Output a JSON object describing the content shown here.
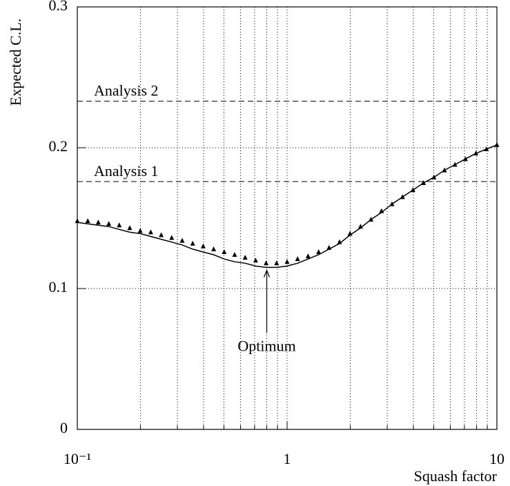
{
  "chart_data": {
    "type": "line",
    "xlabel": "Squash factor",
    "ylabel": "Expected C.L.",
    "xscale": "log",
    "x": [
      0.1,
      0.1122,
      0.1259,
      0.1413,
      0.1585,
      0.1778,
      0.1995,
      0.2239,
      0.2512,
      0.2818,
      0.3162,
      0.3548,
      0.3981,
      0.4467,
      0.5012,
      0.5623,
      0.631,
      0.7079,
      0.7943,
      0.8913,
      1,
      1.122,
      1.259,
      1.413,
      1.585,
      1.778,
      1.995,
      2.239,
      2.512,
      2.818,
      3.162,
      3.548,
      3.981,
      4.467,
      5.012,
      5.623,
      6.31,
      7.079,
      7.943,
      8.913,
      10
    ],
    "series": [
      {
        "color": "#000000",
        "style": "line",
        "values": [
          0.147,
          0.146,
          0.145,
          0.144,
          0.142,
          0.14,
          0.139,
          0.137,
          0.135,
          0.133,
          0.131,
          0.128,
          0.126,
          0.124,
          0.121,
          0.119,
          0.118,
          0.116,
          0.115,
          0.115,
          0.116,
          0.118,
          0.121,
          0.124,
          0.128,
          0.132,
          0.138,
          0.143,
          0.149,
          0.154,
          0.16,
          0.165,
          0.17,
          0.175,
          0.179,
          0.184,
          0.188,
          0.192,
          0.196,
          0.199,
          0.202
        ]
      },
      {
        "color": "#000000",
        "style": "triangle",
        "values": [
          0.148,
          0.148,
          0.147,
          0.146,
          0.145,
          0.143,
          0.141,
          0.14,
          0.138,
          0.136,
          0.134,
          0.132,
          0.13,
          0.128,
          0.126,
          0.124,
          0.122,
          0.12,
          0.118,
          0.118,
          0.119,
          0.121,
          0.123,
          0.126,
          0.129,
          0.133,
          0.139,
          0.144,
          0.149,
          0.155,
          0.16,
          0.165,
          0.17,
          0.175,
          0.179,
          0.184,
          0.188,
          0.192,
          0.196,
          0.199,
          0.202
        ]
      }
    ],
    "xlim": [
      0.1,
      10
    ],
    "xticks": [
      {
        "value": 0.1,
        "label": "10⁻¹"
      },
      1,
      10
    ],
    "xminor_ticks": [
      0.2,
      0.3,
      0.4,
      0.5,
      0.6,
      0.7,
      0.8,
      0.9,
      2,
      3,
      4,
      5,
      6,
      7,
      8,
      9
    ],
    "ylim": [
      0,
      0.3
    ],
    "yticks": [
      0,
      0.1,
      0.2,
      0.3
    ],
    "grid": true,
    "reference_lines": [
      {
        "label": "Analysis 2",
        "y": 0.233
      },
      {
        "label": "Analysis 1",
        "y": 0.176
      }
    ],
    "arrow_annotation": {
      "label": "Optimum",
      "x": 0.8,
      "y": 0.113
    }
  }
}
